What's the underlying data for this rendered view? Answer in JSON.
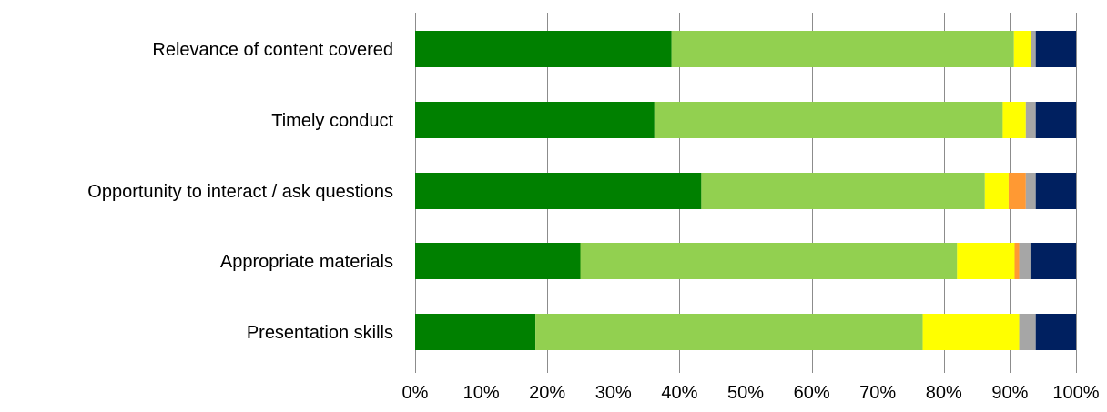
{
  "chart_data": {
    "type": "bar",
    "orientation": "horizontal",
    "stacked": true,
    "percent_stacked": true,
    "categories": [
      "Relevance of content covered",
      "Timely conduct",
      "Opportunity to interact / ask questions",
      "Appropriate materials",
      "Presentation skills"
    ],
    "series": [
      {
        "color": "#008000",
        "values": [
          38.8,
          36.2,
          43.3,
          25.0,
          18.2
        ]
      },
      {
        "color": "#92d050",
        "values": [
          51.8,
          52.7,
          42.9,
          57.0,
          58.6
        ]
      },
      {
        "color": "#ffff00",
        "values": [
          2.6,
          3.5,
          3.6,
          8.7,
          14.6
        ]
      },
      {
        "color": "#ff9933",
        "values": [
          0.0,
          0.0,
          2.6,
          0.7,
          0.0
        ]
      },
      {
        "color": "#a6a6a6",
        "values": [
          0.7,
          1.5,
          1.5,
          1.7,
          2.5
        ]
      },
      {
        "color": "#002060",
        "values": [
          6.1,
          6.1,
          6.1,
          6.9,
          6.1
        ]
      }
    ],
    "x_tick_labels": [
      "0%",
      "10%",
      "20%",
      "30%",
      "40%",
      "50%",
      "60%",
      "70%",
      "80%",
      "90%",
      "100%"
    ],
    "xlim": [
      0,
      100
    ],
    "title": "",
    "xlabel": "",
    "ylabel": "",
    "grid": "vertical-major",
    "legend": "none"
  }
}
